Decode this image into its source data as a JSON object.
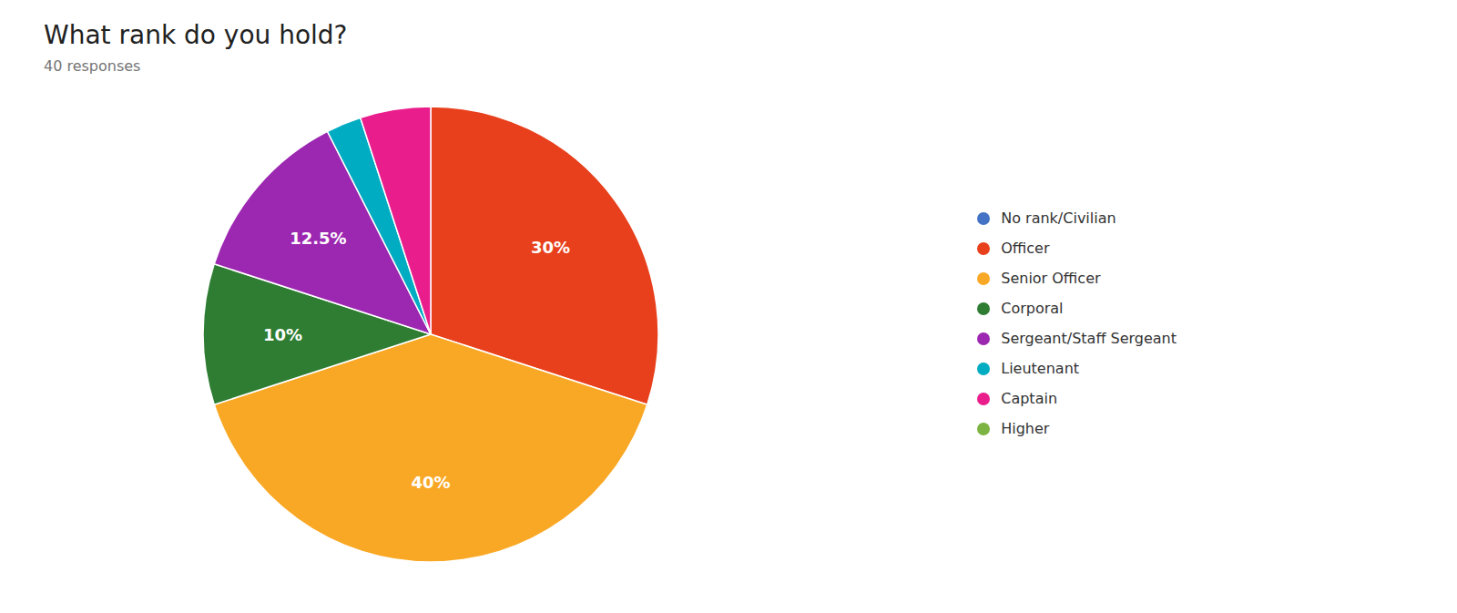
{
  "chart_data": {
    "type": "pie",
    "title": "What rank do you hold?",
    "subtitle": "40 responses",
    "categories": [
      "No rank/Civilian",
      "Officer",
      "Senior Officer",
      "Corporal",
      "Sergeant/Staff Sergeant",
      "Lieutenant",
      "Captain",
      "Higher"
    ],
    "values": [
      0.0,
      30.0,
      40.0,
      10.0,
      12.5,
      2.5,
      5.0,
      0.0
    ],
    "colors": [
      "#4472C4",
      "#E8401C",
      "#F9A825",
      "#2E7D32",
      "#9C27B0",
      "#00ACC1",
      "#E91E8C",
      "#7CB342"
    ],
    "value_labels": [
      null,
      "30%",
      "40%",
      "10%",
      "12.5%",
      null,
      null,
      null
    ],
    "data_labels": true,
    "legend": "right"
  }
}
